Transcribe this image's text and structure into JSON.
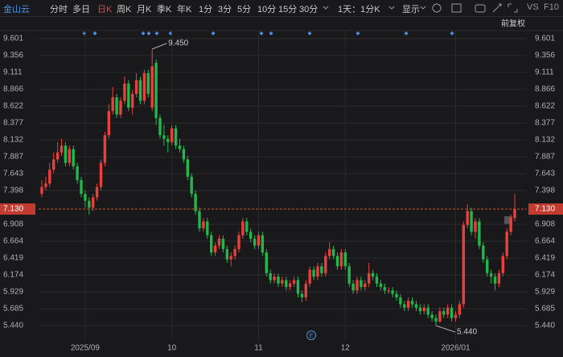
{
  "toolbar": {
    "stock": "金山云",
    "tabs": [
      "分时",
      "多日",
      "日K",
      "周K",
      "月K",
      "季K",
      "年K",
      "1分",
      "3分",
      "5分",
      "10分",
      "15分",
      "30分"
    ],
    "active_tab": "日K",
    "period": "1天：1分K",
    "display": "显示",
    "vs": "VS",
    "f10": "F10",
    "adjust": "前复权"
  },
  "chart_data": {
    "type": "candlestick",
    "categories": [
      null,
      null,
      null,
      null,
      null,
      null,
      null,
      null,
      null,
      null,
      null,
      "2025/09",
      null,
      null,
      null,
      null,
      null,
      null,
      null,
      null,
      null,
      null,
      null,
      null,
      null,
      null,
      null,
      null,
      null,
      null,
      null,
      null,
      null,
      "10",
      null,
      null,
      null,
      null,
      null,
      null,
      null,
      null,
      null,
      null,
      null,
      null,
      null,
      null,
      null,
      null,
      null,
      null,
      null,
      null,
      null,
      "11",
      null,
      null,
      null,
      null,
      null,
      null,
      null,
      null,
      null,
      null,
      null,
      null,
      null,
      null,
      null,
      null,
      null,
      null,
      null,
      null,
      null,
      "12",
      null,
      null,
      null,
      null,
      null,
      null,
      null,
      null,
      null,
      null,
      null,
      null,
      null,
      null,
      null,
      null,
      null,
      null,
      null,
      null,
      null,
      null,
      null,
      null,
      null,
      null,
      null,
      "2026/01",
      null,
      null,
      null,
      null,
      null,
      null,
      null,
      null,
      null,
      null,
      null,
      null,
      null,
      null,
      null
    ],
    "candles": [
      [
        7.35,
        7.55,
        7.3,
        7.45
      ],
      [
        7.45,
        7.6,
        7.4,
        7.5
      ],
      [
        7.5,
        7.8,
        7.45,
        7.7
      ],
      [
        7.7,
        7.95,
        7.65,
        7.85
      ],
      [
        7.85,
        8.1,
        7.8,
        7.95
      ],
      [
        7.95,
        8.15,
        7.9,
        8.05
      ],
      [
        8.05,
        8.1,
        7.75,
        7.8
      ],
      [
        7.8,
        8.05,
        7.75,
        8
      ],
      [
        8,
        8.05,
        7.7,
        7.75
      ],
      [
        7.75,
        7.8,
        7.5,
        7.55
      ],
      [
        7.55,
        7.6,
        7.3,
        7.35
      ],
      [
        7.35,
        7.4,
        7.15,
        7.25
      ],
      [
        7.25,
        7.3,
        7.05,
        7.15
      ],
      [
        7.15,
        7.35,
        7.1,
        7.3
      ],
      [
        7.3,
        7.5,
        7.25,
        7.45
      ],
      [
        7.45,
        7.85,
        7.4,
        7.8
      ],
      [
        7.8,
        8.25,
        7.75,
        8.2
      ],
      [
        8.2,
        8.65,
        8.15,
        8.55
      ],
      [
        8.55,
        8.9,
        8.5,
        8.75
      ],
      [
        8.75,
        8.8,
        8.45,
        8.5
      ],
      [
        8.5,
        8.75,
        8.45,
        8.7
      ],
      [
        8.7,
        9.05,
        8.65,
        8.95
      ],
      [
        8.95,
        9,
        8.55,
        8.6
      ],
      [
        8.6,
        8.85,
        8.5,
        8.8
      ],
      [
        8.8,
        9.1,
        8.75,
        9
      ],
      [
        9,
        9.05,
        8.65,
        8.7
      ],
      [
        8.7,
        9.15,
        8.65,
        9.1
      ],
      [
        9.1,
        9.15,
        8.75,
        8.8
      ],
      [
        8.6,
        9.45,
        8.55,
        9.2
      ],
      [
        9.25,
        9.3,
        8.35,
        8.45
      ],
      [
        8.45,
        8.5,
        8.15,
        8.2
      ],
      [
        8.2,
        8.35,
        8.05,
        8.15
      ],
      [
        8.15,
        8.2,
        7.95,
        8.1
      ],
      [
        8.1,
        8.35,
        8.05,
        8.3
      ],
      [
        8.3,
        8.35,
        8,
        8.05
      ],
      [
        8.05,
        8.15,
        7.95,
        8
      ],
      [
        8,
        8.05,
        7.8,
        7.85
      ],
      [
        7.85,
        7.9,
        7.55,
        7.6
      ],
      [
        7.6,
        7.65,
        7.3,
        7.35
      ],
      [
        7.35,
        7.4,
        7.05,
        7.1
      ],
      [
        7.1,
        7.15,
        6.8,
        6.85
      ],
      [
        6.85,
        7,
        6.8,
        6.95
      ],
      [
        6.95,
        7,
        6.7,
        6.75
      ],
      [
        6.75,
        6.8,
        6.45,
        6.5
      ],
      [
        6.5,
        6.65,
        6.45,
        6.6
      ],
      [
        6.6,
        6.75,
        6.55,
        6.7
      ],
      [
        6.7,
        6.75,
        6.5,
        6.55
      ],
      [
        6.55,
        6.6,
        6.35,
        6.4
      ],
      [
        6.4,
        6.5,
        6.3,
        6.45
      ],
      [
        6.45,
        6.6,
        6.4,
        6.55
      ],
      [
        6.55,
        6.8,
        6.5,
        6.75
      ],
      [
        6.75,
        7,
        6.7,
        6.95
      ],
      [
        6.95,
        7,
        6.75,
        6.8
      ],
      [
        6.8,
        6.85,
        6.65,
        6.7
      ],
      [
        6.7,
        6.75,
        6.55,
        6.6
      ],
      [
        6.6,
        6.8,
        6.55,
        6.75
      ],
      [
        6.75,
        6.8,
        6.45,
        6.5
      ],
      [
        6.5,
        6.55,
        6.15,
        6.2
      ],
      [
        6.2,
        6.25,
        6.05,
        6.1
      ],
      [
        6.1,
        6.2,
        6.05,
        6.15
      ],
      [
        6.15,
        6.2,
        6,
        6.05
      ],
      [
        6.05,
        6.15,
        6,
        6.1
      ],
      [
        6.1,
        6.15,
        5.95,
        6
      ],
      [
        6,
        6.1,
        5.95,
        6.05
      ],
      [
        6.05,
        6.15,
        6,
        6.1
      ],
      [
        6.1,
        6.15,
        5.85,
        5.9
      ],
      [
        5.9,
        5.95,
        5.78,
        5.85
      ],
      [
        5.85,
        6.1,
        5.8,
        6.05
      ],
      [
        6.05,
        6.3,
        6,
        6.25
      ],
      [
        6.25,
        6.3,
        6.1,
        6.15
      ],
      [
        6.15,
        6.35,
        6.1,
        6.3
      ],
      [
        6.3,
        6.35,
        6.15,
        6.2
      ],
      [
        6.2,
        6.5,
        6.15,
        6.45
      ],
      [
        6.45,
        6.65,
        6.4,
        6.55
      ],
      [
        6.55,
        6.6,
        6.4,
        6.45
      ],
      [
        6.45,
        6.5,
        6.25,
        6.3
      ],
      [
        6.3,
        6.55,
        6.25,
        6.5
      ],
      [
        6.5,
        6.55,
        6.25,
        6.3
      ],
      [
        6.3,
        6.35,
        6,
        6.05
      ],
      [
        6.05,
        6.1,
        5.9,
        5.95
      ],
      [
        5.95,
        6.15,
        5.9,
        6.1
      ],
      [
        6.1,
        6.15,
        5.95,
        6
      ],
      [
        6,
        6.1,
        5.95,
        6.05
      ],
      [
        6.05,
        6.35,
        6,
        6.2
      ],
      [
        6.2,
        6.25,
        6.1,
        6.15
      ],
      [
        6.15,
        6.2,
        6,
        6.05
      ],
      [
        6.05,
        6.1,
        5.95,
        6
      ],
      [
        6,
        6.05,
        5.9,
        5.95
      ],
      [
        5.95,
        6,
        5.9,
        5.95
      ],
      [
        5.95,
        6,
        5.85,
        5.9
      ],
      [
        5.9,
        5.95,
        5.8,
        5.85
      ],
      [
        5.85,
        5.9,
        5.7,
        5.75
      ],
      [
        5.75,
        5.8,
        5.65,
        5.7
      ],
      [
        5.7,
        5.85,
        5.65,
        5.8
      ],
      [
        5.8,
        5.85,
        5.7,
        5.75
      ],
      [
        5.75,
        5.8,
        5.65,
        5.7
      ],
      [
        5.7,
        5.75,
        5.6,
        5.65
      ],
      [
        5.65,
        5.75,
        5.6,
        5.7
      ],
      [
        5.7,
        5.75,
        5.55,
        5.6
      ],
      [
        5.6,
        5.65,
        5.5,
        5.55
      ],
      [
        5.55,
        5.6,
        5.44,
        5.5
      ],
      [
        5.5,
        5.7,
        5.48,
        5.65
      ],
      [
        5.65,
        5.7,
        5.55,
        5.6
      ],
      [
        5.6,
        5.75,
        5.55,
        5.7
      ],
      [
        5.7,
        5.75,
        5.5,
        5.55
      ],
      [
        5.55,
        5.65,
        5.5,
        5.6
      ],
      [
        5.6,
        5.8,
        5.55,
        5.75
      ],
      [
        5.75,
        6.95,
        5.7,
        6.9
      ],
      [
        6.9,
        7.2,
        6.85,
        7.1
      ],
      [
        7.1,
        7.15,
        6.75,
        6.8
      ],
      [
        6.8,
        7,
        6.7,
        6.95
      ],
      [
        6.95,
        7,
        6.55,
        6.6
      ],
      [
        6.6,
        6.65,
        6.35,
        6.4
      ],
      [
        6.4,
        6.45,
        6.15,
        6.2
      ],
      [
        6.2,
        6.25,
        6.05,
        6.15
      ],
      [
        6.15,
        6.2,
        5.95,
        6.05
      ],
      [
        6.05,
        6.25,
        6,
        6.2
      ],
      [
        6.2,
        6.5,
        6.15,
        6.45
      ],
      [
        6.45,
        6.85,
        6.4,
        6.8
      ],
      [
        6.8,
        7.05,
        6.75,
        7
      ],
      [
        7,
        7.35,
        6.95,
        7.13
      ]
    ],
    "up_color": "#e8413c",
    "down_color": "#22b74a",
    "ylim": [
      5.265,
      9.718
    ],
    "yticks": [
      9.601,
      9.356,
      9.111,
      8.866,
      {
        "value": 8.622,
        "label": "8.622"
      },
      8.377,
      8.132,
      7.887,
      7.643,
      7.398,
      6.908,
      6.664,
      6.419,
      6.174,
      5.929,
      5.685,
      {
        "value": 5.44,
        "label": "5.440"
      }
    ],
    "last_price": {
      "value": 7.13,
      "label": "7.130"
    },
    "max_label": {
      "value": 9.45,
      "label": "9.450"
    },
    "min_label": {
      "value": 5.44,
      "label": "5.440"
    },
    "event_label": "E",
    "grid": true
  }
}
